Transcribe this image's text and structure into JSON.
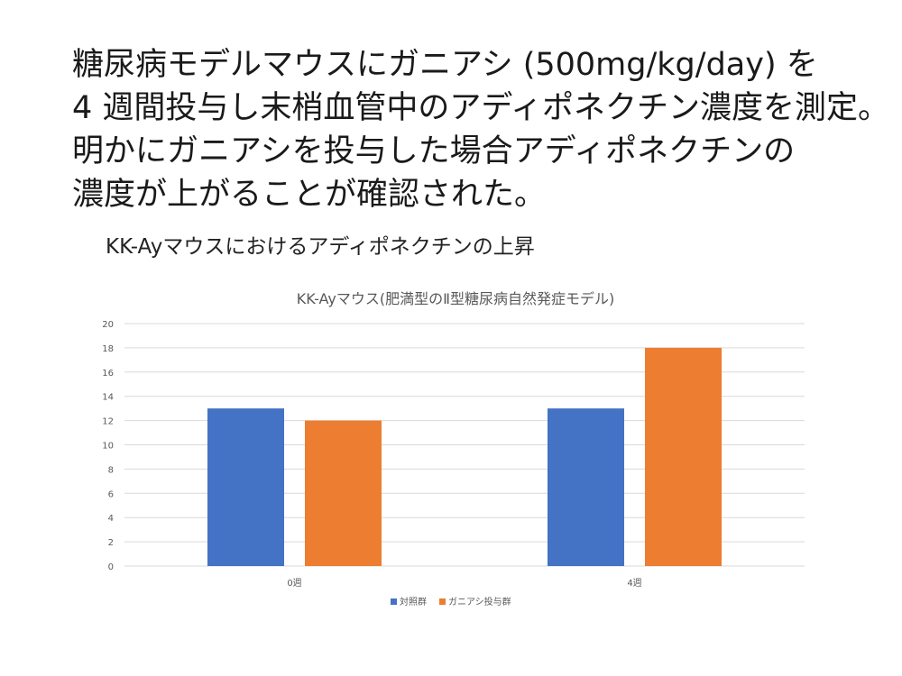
{
  "slide": {
    "lines": [
      "糖尿病モデルマウスにガニアシ (500mg/kg/day) を",
      "4 週間投与し末梢血管中のアディポネクチン濃度を測定。",
      "明かにガニアシを投与した場合アディポネクチンの",
      "濃度が上がることが確認された。"
    ],
    "subtitle": "KK-Ayマウスにおけるアディポネクチンの上昇"
  },
  "chart_data": {
    "type": "bar",
    "title": "KK-Ayマウス(肥満型のⅡ型糖尿病自然発症モデル)",
    "categories": [
      "0週",
      "4週"
    ],
    "series": [
      {
        "name": "対照群",
        "values": [
          13,
          13
        ],
        "color": "#4472C4"
      },
      {
        "name": "ガニアシ投与群",
        "values": [
          12,
          18
        ],
        "color": "#ED7D31"
      }
    ],
    "ylim": [
      0,
      20
    ],
    "yticks": [
      0,
      2,
      4,
      6,
      8,
      10,
      12,
      14,
      16,
      18,
      20
    ],
    "grid": true,
    "legend": "bottom",
    "xlabel": "",
    "ylabel": ""
  }
}
